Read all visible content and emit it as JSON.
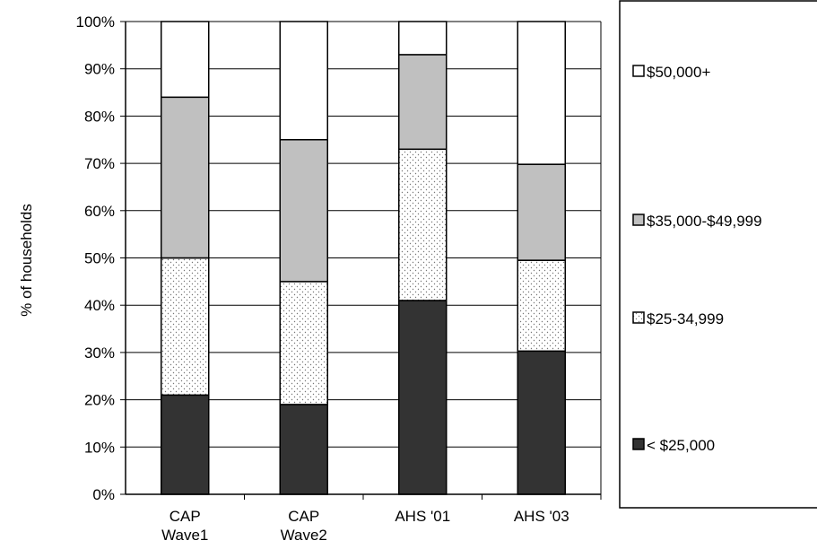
{
  "chart_data": {
    "type": "bar",
    "stacked": true,
    "categories": [
      [
        "CAP",
        "Wave1"
      ],
      [
        "CAP",
        "Wave2"
      ],
      [
        "AHS '01"
      ],
      [
        "AHS '03"
      ]
    ],
    "ylabel": "% of households",
    "xlabel": "",
    "ylim": [
      0,
      100
    ],
    "yticks": [
      "0%",
      "10%",
      "20%",
      "30%",
      "40%",
      "50%",
      "60%",
      "70%",
      "80%",
      "90%",
      "100%"
    ],
    "grid": true,
    "legend_position": "right",
    "series": [
      {
        "name": "< $25,000",
        "values": [
          21,
          19,
          41,
          30.3
        ],
        "pattern": "solid-dark"
      },
      {
        "name": "$25-34,999",
        "values": [
          29,
          26,
          32,
          19.2
        ],
        "pattern": "dots"
      },
      {
        "name": "$35,000-$49,999",
        "values": [
          34,
          30,
          20,
          20.3
        ],
        "pattern": "solid-gray"
      },
      {
        "name": "$50,000+",
        "values": [
          16,
          25,
          7,
          30.2
        ],
        "pattern": "white"
      }
    ],
    "colors": {
      "dark": "#333333",
      "gray": "#c0c0c0",
      "white": "#ffffff",
      "dot": "#777777"
    }
  }
}
